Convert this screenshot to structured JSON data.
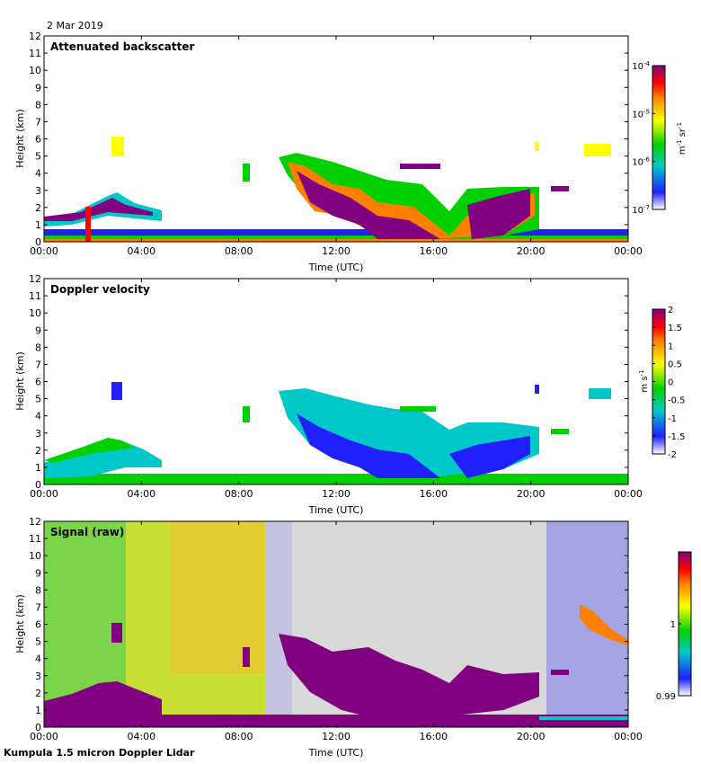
{
  "date": "2 Mar 2019",
  "footer": "Kumpula 1.5 micron Doppler Lidar",
  "colors": {
    "background_signal": "#d9d9d9",
    "strong_signal": "#800080"
  },
  "chart_data": [
    {
      "type": "heatmap",
      "title": "Attenuated backscatter",
      "xlabel": "Time (UTC)",
      "ylabel": "Height (km)",
      "xlim": [
        "00:00",
        "24:00"
      ],
      "x_ticks": [
        "00:00",
        "04:00",
        "08:00",
        "12:00",
        "16:00",
        "20:00",
        "00:00"
      ],
      "ylim": [
        0,
        12
      ],
      "y_ticks": [
        "0",
        "1",
        "2",
        "3",
        "4",
        "5",
        "6",
        "7",
        "8",
        "9",
        "10",
        "11",
        "12"
      ],
      "colorbar": {
        "scale": "log",
        "ticks": [
          "10^-7",
          "10^-6",
          "10^-5",
          "10^-4"
        ],
        "unit": "m^-1 sr^-1",
        "colormap": "rainbow (white-blue-green-yellow-red-purple)"
      }
    },
    {
      "type": "heatmap",
      "title": "Doppler velocity",
      "xlabel": "Time (UTC)",
      "ylabel": "Height (km)",
      "xlim": [
        "00:00",
        "24:00"
      ],
      "x_ticks": [
        "00:00",
        "04:00",
        "08:00",
        "12:00",
        "16:00",
        "20:00",
        "00:00"
      ],
      "ylim": [
        0,
        12
      ],
      "y_ticks": [
        "0",
        "1",
        "2",
        "3",
        "4",
        "5",
        "6",
        "7",
        "8",
        "9",
        "10",
        "11",
        "12"
      ],
      "colorbar": {
        "scale": "linear",
        "ticks": [
          "-2",
          "-1.5",
          "-1",
          "-0.5",
          "0",
          "0.5",
          "1",
          "1.5",
          "2"
        ],
        "unit": "m s^-1",
        "colormap": "rainbow (white-blue-green-yellow-red-purple)"
      }
    },
    {
      "type": "heatmap",
      "title": "Signal (raw)",
      "xlabel": "Time (UTC)",
      "ylabel": "Height (km)",
      "xlim": [
        "00:00",
        "24:00"
      ],
      "x_ticks": [
        "00:00",
        "04:00",
        "08:00",
        "12:00",
        "16:00",
        "20:00",
        "00:00"
      ],
      "ylim": [
        0,
        12
      ],
      "y_ticks": [
        "0",
        "1",
        "2",
        "3",
        "4",
        "5",
        "6",
        "7",
        "8",
        "9",
        "10",
        "11",
        "12"
      ],
      "colorbar": {
        "scale": "linear",
        "ticks": [
          "0.99",
          "1"
        ],
        "unit": "",
        "colormap": "rainbow (white-blue-green-yellow-red-purple)"
      }
    }
  ]
}
